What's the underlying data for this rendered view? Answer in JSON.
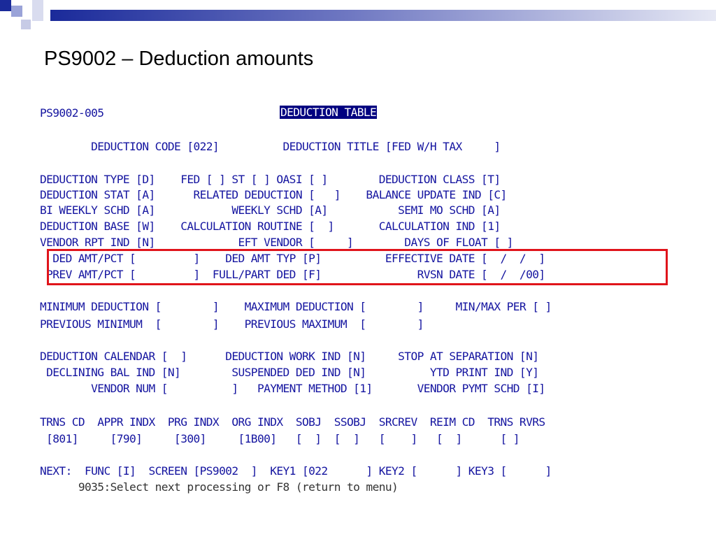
{
  "slide": {
    "title": "PS9002 – Deduction amounts"
  },
  "screen": {
    "id": "PS9002-005",
    "header": "DEDUCTION TABLE",
    "line_code": "        DEDUCTION CODE [022]          DEDUCTION TITLE [FED W/H TAX     ]",
    "lines_a": [
      "DEDUCTION TYPE [D]    FED [ ] ST [ ] OASI [ ]        DEDUCTION CLASS [T]",
      "DEDUCTION STAT [A]      RELATED DEDUCTION [   ]    BALANCE UPDATE IND [C]",
      "BI WEEKLY SCHD [A]            WEEKLY SCHD [A]           SEMI MO SCHD [A]",
      "DEDUCTION BASE [W]    CALCULATION ROUTINE [  ]       CALCULATION IND [1]",
      "VENDOR RPT IND [N]             EFT VENDOR [     ]        DAYS OF FLOAT [ ]"
    ],
    "lines_highlight": [
      "  DED AMT/PCT [         ]    DED AMT TYP [P]          EFFECTIVE DATE [  /  /  ]",
      " PREV AMT/PCT [         ]  FULL/PART DED [F]               RVSN DATE [  /  /00]"
    ],
    "lines_minmax": [
      "MINIMUM DEDUCTION [        ]    MAXIMUM DEDUCTION [        ]     MIN/MAX PER [ ]",
      "PREVIOUS MINIMUM  [        ]    PREVIOUS MAXIMUM  [        ]"
    ],
    "lines_calendar": [
      "DEDUCTION CALENDAR [  ]      DEDUCTION WORK IND [N]     STOP AT SEPARATION [N]",
      " DECLINING BAL IND [N]        SUSPENDED DED IND [N]          YTD PRINT IND [Y]",
      "        VENDOR NUM [          ]   PAYMENT METHOD [1]       VENDOR PYMT SCHD [I]"
    ],
    "accounting": {
      "headers": "TRNS CD  APPR INDX  PRG INDX  ORG INDX  SOBJ  SSOBJ  SRCREV  REIM CD  TRNS RVRS",
      "values": " [801]     [790]     [300]     [1B00]   [  ]  [  ]   [    ]   [  ]      [ ]"
    },
    "next_line": "NEXT:  FUNC [I]  SCREEN [PS9002  ]  KEY1 [022      ] KEY2 [      ] KEY3 [      ]",
    "message": "      9035:Select next processing or F8 (return to menu)"
  },
  "colors": {
    "terminal_text": "#1515a0",
    "highlight_border": "#e0141b",
    "header_bg": "#000080",
    "deco_blue": "#1a2a9a"
  }
}
